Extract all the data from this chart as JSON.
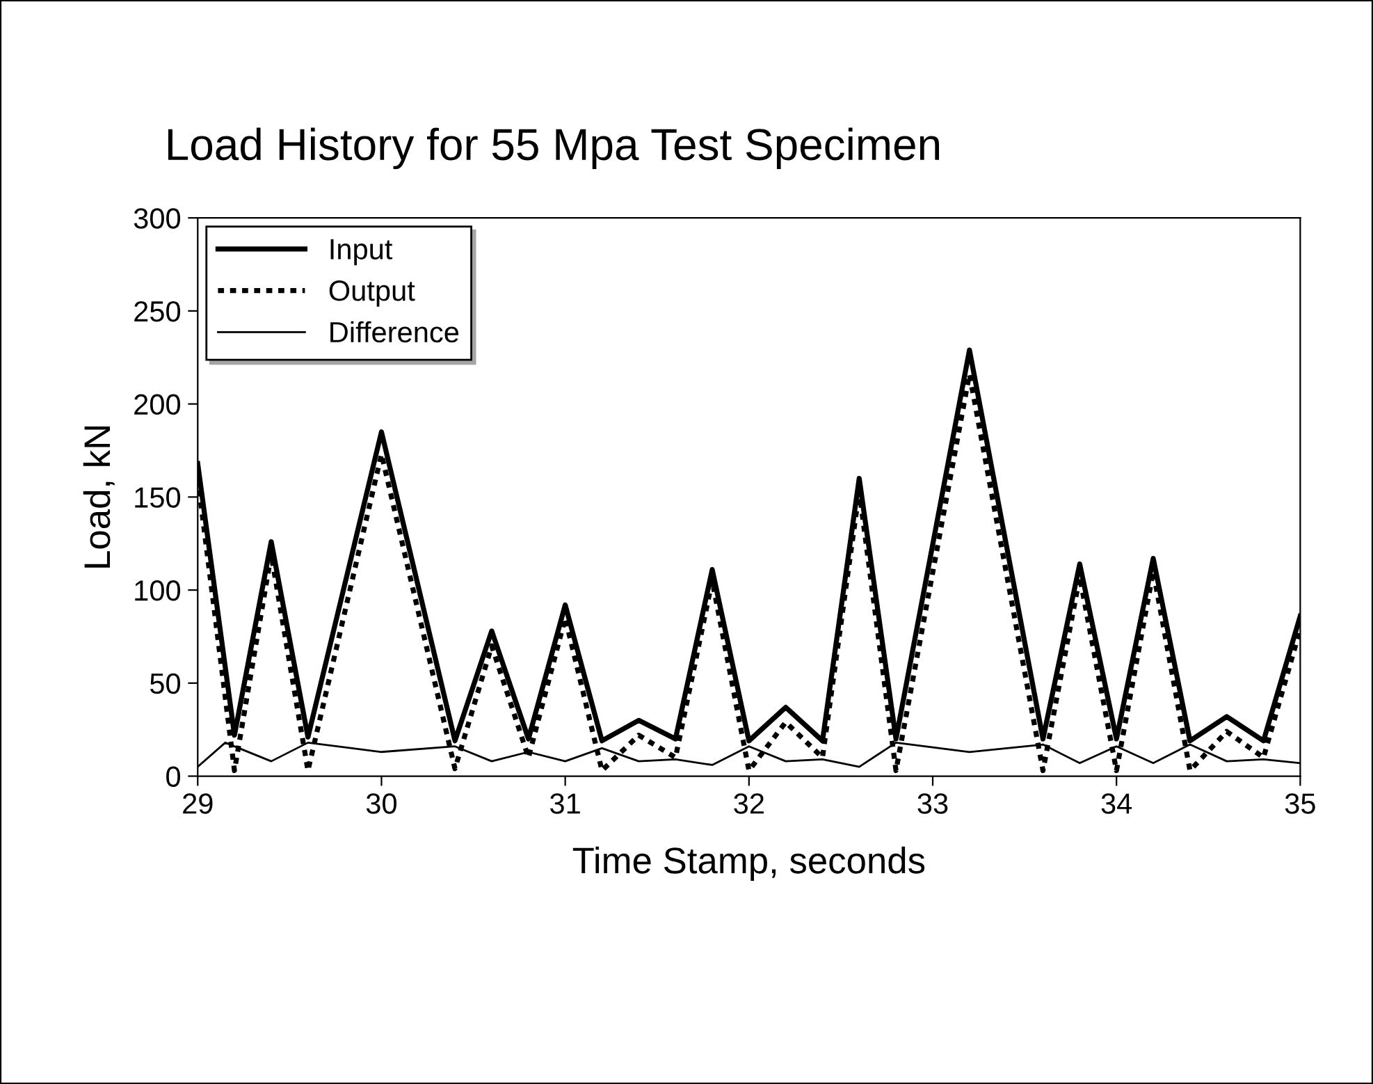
{
  "chart_data": {
    "type": "line",
    "title": "Load History for 55 Mpa Test Specimen",
    "xlabel": "Time Stamp, seconds",
    "ylabel": "Load, kN",
    "xlim": [
      29,
      35
    ],
    "xticks": [
      29,
      30,
      31,
      32,
      33,
      34,
      35
    ],
    "ylim": [
      0,
      300
    ],
    "yticks": [
      0,
      50,
      100,
      150,
      200,
      250,
      300
    ],
    "grid": false,
    "legend": "top left",
    "marker": "none",
    "series": [
      {
        "name": "Input",
        "color": "#000000",
        "line_style": "solid",
        "x": [
          29.0,
          29.2,
          29.4,
          29.6,
          30.0,
          30.4,
          30.6,
          30.8,
          31.0,
          31.2,
          31.4,
          31.6,
          31.8,
          32.0,
          32.2,
          32.4,
          32.6,
          32.8,
          33.2,
          33.6,
          33.8,
          34.0,
          34.2,
          34.4,
          34.6,
          34.8,
          35.0
        ],
        "values": [
          168,
          22,
          126,
          21,
          185,
          19,
          78,
          20,
          92,
          19,
          30,
          20,
          111,
          19,
          37,
          19,
          160,
          20,
          229,
          20,
          114,
          20,
          117,
          19,
          32,
          19,
          86
        ]
      },
      {
        "name": "Output",
        "color": "#000000",
        "line_style": "dotted",
        "x": [
          29.0,
          29.2,
          29.4,
          29.6,
          30.0,
          30.4,
          30.6,
          30.8,
          31.0,
          31.2,
          31.4,
          31.6,
          31.8,
          32.0,
          32.2,
          32.4,
          32.6,
          32.8,
          33.2,
          33.6,
          33.8,
          34.0,
          34.2,
          34.4,
          34.6,
          34.8,
          35.0
        ],
        "values": [
          160,
          3,
          119,
          3,
          173,
          4,
          70,
          10,
          85,
          3,
          22,
          10,
          105,
          3,
          29,
          10,
          153,
          3,
          216,
          3,
          107,
          3,
          110,
          3,
          24,
          10,
          79
        ]
      },
      {
        "name": "Difference",
        "color": "#000000",
        "line_style": "solid",
        "x": [
          29.0,
          29.15,
          29.4,
          29.6,
          30.0,
          30.4,
          30.6,
          30.8,
          31.0,
          31.2,
          31.4,
          31.6,
          31.8,
          32.0,
          32.2,
          32.4,
          32.6,
          32.8,
          33.2,
          33.6,
          33.8,
          34.0,
          34.2,
          34.4,
          34.6,
          34.8,
          35.0
        ],
        "values": [
          5,
          18,
          8,
          18,
          13,
          16,
          8,
          13,
          8,
          15,
          8,
          9,
          6,
          16,
          8,
          9,
          5,
          18,
          13,
          17,
          7,
          16,
          7,
          17,
          8,
          9,
          7
        ]
      }
    ]
  }
}
